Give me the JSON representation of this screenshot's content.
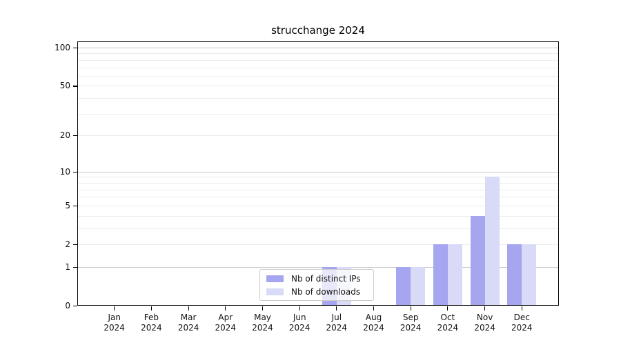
{
  "title": "strucchange 2024",
  "legend": {
    "items": [
      {
        "label": "Nb of distinct IPs",
        "color": "#a5a5f0"
      },
      {
        "label": "Nb of downloads",
        "color": "#d9d9f8"
      }
    ]
  },
  "colors": {
    "bar_distinct_ips": "#a5a5f0",
    "bar_downloads": "#d9d9f8",
    "grid_decade": "#c8c8c8",
    "grid_sub": "#ececec",
    "axis": "#000000"
  },
  "chart_data": {
    "type": "bar",
    "title": "strucchange 2024",
    "categories": [
      "Jan",
      "Feb",
      "Mar",
      "Apr",
      "May",
      "Jun",
      "Jul",
      "Aug",
      "Sep",
      "Oct",
      "Nov",
      "Dec"
    ],
    "year_label": "2024",
    "series": [
      {
        "name": "Nb of distinct IPs",
        "color": "#a5a5f0",
        "values": [
          0,
          0,
          0,
          0,
          0,
          0,
          1,
          0,
          1,
          2,
          4,
          2
        ]
      },
      {
        "name": "Nb of downloads",
        "color": "#d9d9f8",
        "values": [
          0,
          0,
          0,
          0,
          0,
          0,
          1,
          0,
          1,
          2,
          9,
          2
        ]
      }
    ],
    "yscale": "log1p",
    "ylim": [
      0,
      113
    ],
    "yticks": [
      0,
      1,
      2,
      5,
      10,
      20,
      50,
      100
    ],
    "decade_gridlines": [
      1,
      10,
      100
    ],
    "sub_gridlines": [
      2,
      3,
      4,
      5,
      6,
      7,
      8,
      9,
      20,
      30,
      40,
      50,
      60,
      70,
      80,
      90
    ],
    "xlabel": "",
    "ylabel": "",
    "grid": true,
    "legend_position": "lower-center"
  }
}
